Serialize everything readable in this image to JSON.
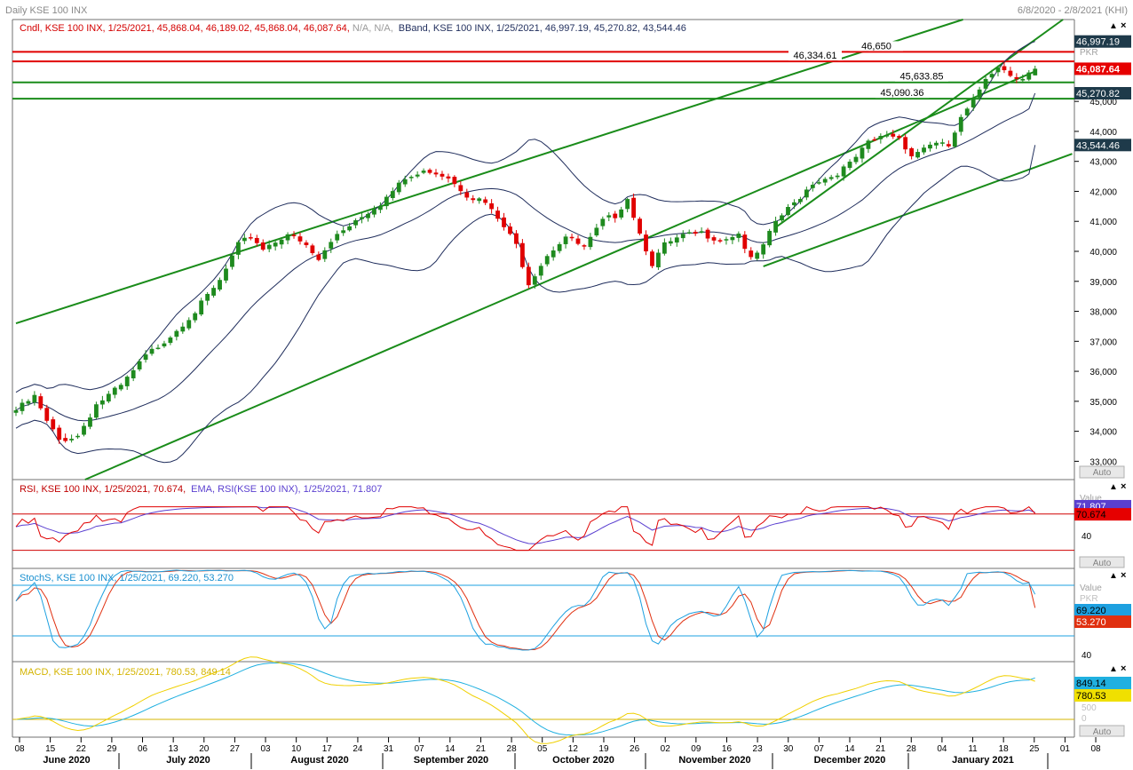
{
  "window": {
    "title": "Daily KSE 100 INX",
    "date_range": "6/8/2020 - 2/8/2021 (KHI)"
  },
  "legends": {
    "price": {
      "candle_label": "Cndl, KSE 100 INX, 1/25/2021, 45,868.04, 46,189.02, 45,868.04, 46,087.64, ",
      "candle_na": "N/A, N/A,",
      "bband_label": "BBand, KSE 100 INX, 1/25/2021, 46,997.19, 45,270.82, 43,544.46"
    },
    "rsi": {
      "rsi_label": "RSI, KSE 100 INX, 1/25/2021, 70.674,",
      "ema_label": "EMA, RSI(KSE 100 INX), 1/25/2021, 71.807"
    },
    "stoch": {
      "label": "StochS, KSE 100 INX, 1/25/2021, 69.220, 53.270"
    },
    "macd": {
      "label": "MACD, KSE 100 INX, 1/25/2021, 780.53, 849.14"
    }
  },
  "colors": {
    "up_candle": "#1e8a1e",
    "down_candle": "#e00000",
    "trend_line": "#1a8c1a",
    "resistance": "#e00000",
    "support": "#1a8c1a",
    "bband": "#1f2d5c",
    "rsi_line": "#e00000",
    "rsi_ema": "#5a3fd0",
    "stoch_k": "#1da0e0",
    "stoch_d": "#e03010",
    "macd_line": "#f0d000",
    "macd_signal": "#20b0e0"
  },
  "chart_data": {
    "type": "candlestick",
    "symbol": "KSE 100 INX",
    "x_start": "6/8/2020",
    "last_date": "1/25/2021",
    "ylim": [
      32700,
      47850
    ],
    "y_ticks": [
      "33,000",
      "34,000",
      "35,000",
      "36,000",
      "37,000",
      "38,000",
      "39,000",
      "40,000",
      "41,000",
      "42,000",
      "43,000",
      "44,000",
      "45,000"
    ],
    "y_tick_values": [
      33000,
      34000,
      35000,
      36000,
      37000,
      38000,
      39000,
      40000,
      41000,
      42000,
      43000,
      44000,
      45000
    ],
    "x_ticks": [
      "08",
      "15",
      "22",
      "29",
      "06",
      "13",
      "20",
      "27",
      "03",
      "10",
      "17",
      "24",
      "31",
      "07",
      "14",
      "21",
      "28",
      "05",
      "12",
      "19",
      "26",
      "02",
      "09",
      "16",
      "23",
      "30",
      "07",
      "14",
      "21",
      "28",
      "04",
      "11",
      "18",
      "25",
      "01",
      "08"
    ],
    "months": [
      "June 2020",
      "July 2020",
      "August 2020",
      "September 2020",
      "October 2020",
      "November 2020",
      "December 2020",
      "January 2021"
    ],
    "horizontal_levels": [
      {
        "value": 46650,
        "label": "46,650",
        "kind": "resistance"
      },
      {
        "value": 46334.61,
        "label": "46,334.61",
        "kind": "resistance"
      },
      {
        "value": 45633.85,
        "label": "45,633.85",
        "kind": "support"
      },
      {
        "value": 45090.36,
        "label": "45,090.36",
        "kind": "support"
      }
    ],
    "price_badges": [
      {
        "value": 46997.19,
        "label": "46,997.19",
        "style": "dark"
      },
      {
        "value": 46087.64,
        "label": "46,087.64",
        "style": "red"
      },
      {
        "value": 45270.82,
        "label": "45,270.82",
        "style": "dark"
      },
      {
        "value": 43544.46,
        "label": "43,544.46",
        "style": "dark"
      }
    ],
    "axis_unit": "PKR",
    "anchors": [
      [
        0,
        34700
      ],
      [
        3,
        35150
      ],
      [
        5,
        34300
      ],
      [
        7,
        33700
      ],
      [
        10,
        33850
      ],
      [
        13,
        34900
      ],
      [
        17,
        35500
      ],
      [
        21,
        36500
      ],
      [
        25,
        37200
      ],
      [
        29,
        38000
      ],
      [
        33,
        39000
      ],
      [
        36,
        40200
      ],
      [
        38,
        40500
      ],
      [
        40,
        40100
      ],
      [
        44,
        40600
      ],
      [
        47,
        40150
      ],
      [
        49,
        39700
      ],
      [
        52,
        40600
      ],
      [
        56,
        41200
      ],
      [
        59,
        41600
      ],
      [
        63,
        42400
      ],
      [
        67,
        42700
      ],
      [
        70,
        42500
      ],
      [
        73,
        41900
      ],
      [
        76,
        41600
      ],
      [
        79,
        40800
      ],
      [
        81,
        40200
      ],
      [
        83,
        38950
      ],
      [
        86,
        39900
      ],
      [
        89,
        40500
      ],
      [
        92,
        40100
      ],
      [
        95,
        41000
      ],
      [
        97,
        41200
      ],
      [
        99,
        41800
      ],
      [
        101,
        40600
      ],
      [
        103,
        39600
      ],
      [
        105,
        40200
      ],
      [
        108,
        40500
      ],
      [
        111,
        40600
      ],
      [
        114,
        40400
      ],
      [
        117,
        40600
      ],
      [
        119,
        39700
      ],
      [
        121,
        40150
      ],
      [
        123,
        41000
      ],
      [
        126,
        41600
      ],
      [
        129,
        42300
      ],
      [
        132,
        42500
      ],
      [
        135,
        42900
      ],
      [
        138,
        43600
      ],
      [
        141,
        43900
      ],
      [
        143,
        43800
      ],
      [
        145,
        43200
      ],
      [
        148,
        43600
      ],
      [
        151,
        43500
      ],
      [
        153,
        44400
      ],
      [
        155,
        45000
      ],
      [
        157,
        45800
      ],
      [
        159,
        46200
      ],
      [
        161,
        45900
      ],
      [
        163,
        45800
      ],
      [
        165,
        46087.64
      ]
    ],
    "candles_detail_last": {
      "date": "1/25/2021",
      "open": 45868.04,
      "high": 46189.02,
      "low": 45868.04,
      "close": 46087.64
    },
    "bband_last": {
      "upper": 46997.19,
      "middle": 45270.82,
      "lower": 43544.46
    },
    "trendlines": {
      "channel_upper": [
        [
          0,
          37600
        ],
        [
          165,
          48500
        ]
      ],
      "channel_lower": [
        [
          0,
          31400
        ],
        [
          165,
          46000
        ]
      ],
      "long_support": [
        [
          121,
          39500
        ],
        [
          171,
          43250
        ]
      ],
      "short_upper": [
        [
          123,
          40800
        ],
        [
          171,
          47950
        ]
      ]
    },
    "rsi": {
      "last": 70.674,
      "ema_last": 71.807,
      "levels": [
        70,
        30
      ],
      "y_tick": "40"
    },
    "stochastic": {
      "k_last": 69.22,
      "d_last": 53.27,
      "levels": [
        80,
        20
      ],
      "y_tick": "40"
    },
    "macd": {
      "macd_last": 780.53,
      "signal_last": 849.14,
      "y_ticks": [
        "500",
        "0"
      ]
    }
  },
  "ui": {
    "value_label": "Value",
    "pkr_label": "PKR",
    "auto_label": "Auto",
    "close_glyph": "×",
    "up_glyph": "▲"
  }
}
